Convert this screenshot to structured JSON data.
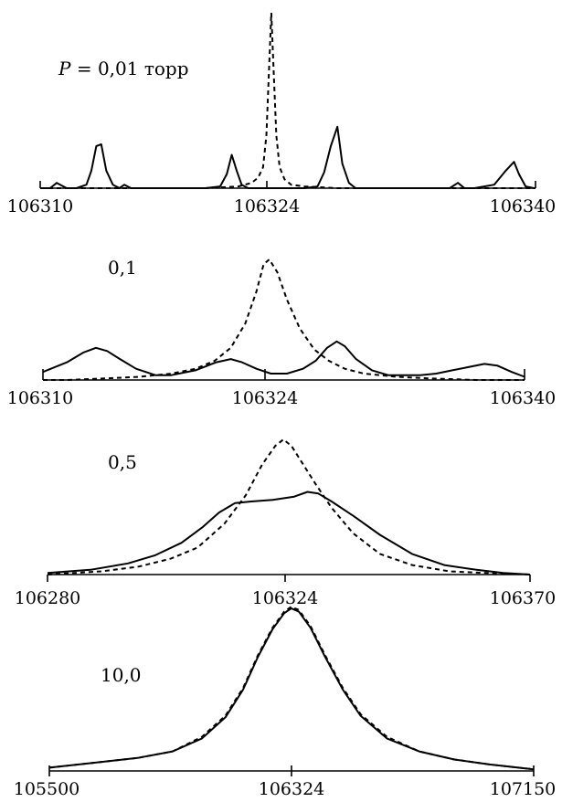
{
  "chart_data": [
    {
      "type": "line",
      "label_prefix": "P = ",
      "label": "0,01 торр",
      "x_ticks": [
        "106310",
        "106324",
        "106340"
      ],
      "xlim": [
        106310,
        106340
      ],
      "ylim": [
        0,
        1.0
      ],
      "series": [
        {
          "style": "solid",
          "x": [
            106310,
            106310.6,
            106311.0,
            106311.6,
            106312.2,
            106312.8,
            106313.1,
            106313.4,
            106313.7,
            106314.0,
            106314.4,
            106314.8,
            106315.1,
            106315.5,
            106316,
            106317,
            106318,
            106319,
            106320,
            106320.9,
            106321.3,
            106321.6,
            106321.9,
            106322.2,
            106322.6,
            106323,
            106324,
            106325,
            106326,
            106326.8,
            106327.2,
            106327.6,
            106328.0,
            106328.3,
            106328.7,
            106329.1,
            106330,
            106331,
            106332,
            106333,
            106334,
            106334.8,
            106335.3,
            106335.7,
            106336.3,
            106337.5,
            106338.2,
            106338.7,
            106339.0,
            106339.4,
            106339.9,
            106340
          ],
          "values": [
            0.0,
            0.0,
            0.03,
            0.0,
            0.0,
            0.02,
            0.1,
            0.24,
            0.25,
            0.1,
            0.02,
            0.0,
            0.02,
            0.0,
            0.0,
            0.0,
            0.0,
            0.0,
            0.0,
            0.01,
            0.08,
            0.19,
            0.1,
            0.02,
            0.0,
            0.0,
            0.0,
            0.0,
            0.0,
            0.01,
            0.09,
            0.24,
            0.35,
            0.14,
            0.03,
            0.0,
            0.0,
            0.0,
            0.0,
            0.0,
            0.0,
            0.0,
            0.03,
            0.0,
            0.0,
            0.02,
            0.1,
            0.15,
            0.08,
            0.01,
            0.0,
            0.0
          ]
        },
        {
          "style": "dashed",
          "x": [
            106310,
            106316,
            106320,
            106322,
            106322.8,
            106323.2,
            106323.5,
            106323.7,
            106323.85,
            106324,
            106324.15,
            106324.3,
            106324.5,
            106324.8,
            106325.2,
            106326,
            106328,
            106332,
            106340
          ],
          "values": [
            0.0,
            0.0,
            0.0,
            0.01,
            0.03,
            0.06,
            0.12,
            0.3,
            0.65,
            1.0,
            0.65,
            0.3,
            0.12,
            0.05,
            0.02,
            0.01,
            0.0,
            0.0,
            0.0
          ]
        }
      ]
    },
    {
      "type": "line",
      "label_prefix": "",
      "label": "0,1",
      "x_ticks": [
        "106310",
        "106324",
        "106340"
      ],
      "xlim": [
        106310,
        106340
      ],
      "ylim": [
        0,
        1.0
      ],
      "series": [
        {
          "style": "solid",
          "x": [
            106310,
            106311.5,
            106312.5,
            106313.3,
            106314.0,
            106314.8,
            106315.8,
            106317,
            106318,
            106319.5,
            106320.8,
            106321.7,
            106322.4,
            106323.3,
            106324.2,
            106325.2,
            106326.2,
            106327,
            106327.7,
            106328.3,
            106328.8,
            106329.5,
            106330.5,
            106331.5,
            106332.5,
            106333.5,
            106334.5,
            106335.5,
            106336.5,
            106337.5,
            106338.3,
            106339.2,
            106340
          ],
          "values": [
            0.05,
            0.11,
            0.17,
            0.2,
            0.18,
            0.13,
            0.07,
            0.03,
            0.03,
            0.06,
            0.11,
            0.13,
            0.11,
            0.07,
            0.04,
            0.04,
            0.07,
            0.12,
            0.2,
            0.24,
            0.21,
            0.13,
            0.06,
            0.03,
            0.03,
            0.03,
            0.04,
            0.06,
            0.08,
            0.1,
            0.09,
            0.05,
            0.02
          ]
        },
        {
          "style": "dashed",
          "x": [
            106310,
            106311.5,
            106314,
            106316,
            106318,
            106319.5,
            106320.7,
            106321.7,
            106322.6,
            106323.3,
            106323.75,
            106324.1,
            106324.6,
            106325.2,
            106326,
            106326.9,
            106327.8,
            106328.8,
            106330,
            106332,
            106334,
            106337,
            106340
          ],
          "values": [
            0.0,
            0.0,
            0.01,
            0.02,
            0.04,
            0.07,
            0.12,
            0.2,
            0.35,
            0.55,
            0.72,
            0.75,
            0.67,
            0.5,
            0.32,
            0.19,
            0.12,
            0.07,
            0.04,
            0.02,
            0.01,
            0.0,
            0.0
          ]
        }
      ]
    },
    {
      "type": "line",
      "label_prefix": "",
      "label": "0,5",
      "x_ticks": [
        "106280",
        "106324",
        "106370"
      ],
      "xlim": [
        106280,
        106370
      ],
      "ylim": [
        0,
        1.0
      ],
      "series": [
        {
          "style": "solid",
          "x": [
            106280,
            106288,
            106295,
            106300,
            106305,
            106309,
            106312,
            106315,
            106318,
            106322,
            106326,
            106328.5,
            106330.5,
            106333,
            106337,
            106342,
            106348,
            106354,
            106360,
            106365,
            106370
          ],
          "values": [
            0.01,
            0.03,
            0.07,
            0.12,
            0.2,
            0.3,
            0.39,
            0.45,
            0.46,
            0.47,
            0.49,
            0.52,
            0.51,
            0.46,
            0.37,
            0.25,
            0.13,
            0.06,
            0.03,
            0.01,
            0.0
          ]
        },
        {
          "style": "dashed",
          "x": [
            106280,
            106290,
            106297,
            106303,
            106308,
            106313,
            106317,
            106320,
            106322.5,
            106324,
            106325.5,
            106327,
            106330,
            106333,
            106337,
            106342,
            106348,
            106355,
            106362,
            106370
          ],
          "values": [
            0.0,
            0.02,
            0.05,
            0.1,
            0.17,
            0.32,
            0.5,
            0.69,
            0.81,
            0.85,
            0.81,
            0.73,
            0.57,
            0.42,
            0.26,
            0.13,
            0.06,
            0.02,
            0.01,
            0.0
          ]
        }
      ]
    },
    {
      "type": "line",
      "label_prefix": "",
      "label": "10,0",
      "x_ticks": [
        "105500",
        "106324",
        "107150"
      ],
      "xlim": [
        105500,
        107150
      ],
      "ylim": [
        0,
        1.0
      ],
      "series": [
        {
          "style": "solid",
          "x": [
            105500,
            105650,
            105800,
            105920,
            106020,
            106100,
            106160,
            106210,
            106260,
            106300,
            106324,
            106350,
            106390,
            106440,
            106500,
            106560,
            106650,
            106760,
            106880,
            107000,
            107150
          ],
          "values": [
            0.02,
            0.05,
            0.08,
            0.12,
            0.2,
            0.33,
            0.5,
            0.7,
            0.87,
            0.97,
            1.0,
            0.98,
            0.88,
            0.7,
            0.5,
            0.34,
            0.2,
            0.12,
            0.07,
            0.04,
            0.01
          ]
        },
        {
          "style": "dashed",
          "x": [
            105500,
            105650,
            105800,
            105920,
            106020,
            106100,
            106160,
            106210,
            106260,
            106300,
            106324,
            106350,
            106390,
            106440,
            106500,
            106560,
            106650,
            106760,
            106880,
            107000,
            107150
          ],
          "values": [
            0.02,
            0.05,
            0.08,
            0.12,
            0.21,
            0.34,
            0.51,
            0.71,
            0.88,
            0.98,
            1.01,
            0.99,
            0.89,
            0.71,
            0.51,
            0.35,
            0.21,
            0.12,
            0.07,
            0.04,
            0.01
          ]
        }
      ]
    }
  ]
}
